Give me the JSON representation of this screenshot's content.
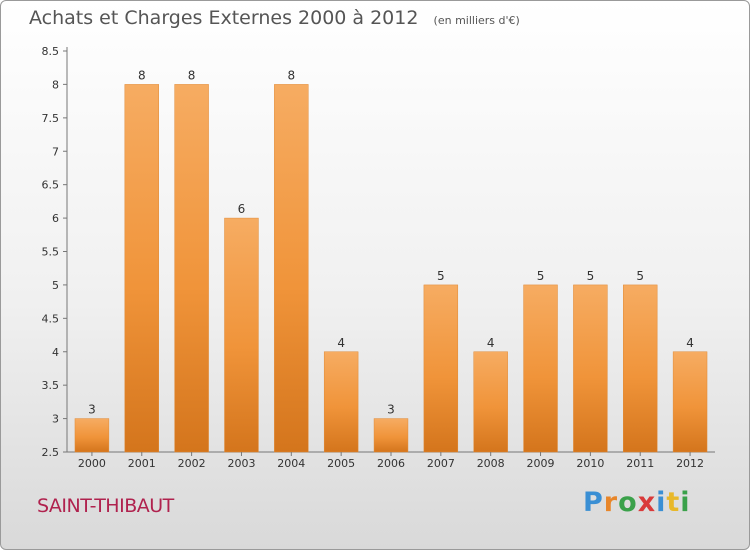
{
  "title": "Achats et Charges Externes 2000 à 2012",
  "unit": "(en milliers d'€)",
  "commune": "SAINT-THIBAUT",
  "logo": {
    "letters": [
      "P",
      "r",
      "o",
      "x",
      "i",
      "t",
      "i"
    ],
    "colors": [
      "#3a8fd4",
      "#e8862a",
      "#3aa14a",
      "#d93a3a",
      "#3a8fd4",
      "#e8b82a",
      "#3aa14a"
    ]
  },
  "colors": {
    "bar": "#f0943a",
    "bar_light": "#f6ac62",
    "bar_dark": "#d4751c",
    "title": "#555555",
    "commune": "#b0224e"
  },
  "chart_data": {
    "type": "bar",
    "categories": [
      "2000",
      "2001",
      "2002",
      "2003",
      "2004",
      "2005",
      "2006",
      "2007",
      "2008",
      "2009",
      "2010",
      "2011",
      "2012"
    ],
    "values": [
      3,
      8,
      8,
      6,
      8,
      4,
      3,
      5,
      4,
      5,
      5,
      5,
      4
    ],
    "ylim": [
      2.5,
      8.5
    ],
    "yticks": [
      "8.5",
      "8",
      "7.5",
      "7",
      "6.5",
      "6",
      "5.5",
      "5",
      "4.5",
      "4",
      "3.5",
      "3",
      "2.5"
    ],
    "grid": false,
    "title": "Achats et Charges Externes 2000 à 2012",
    "xlabel": "",
    "ylabel": ""
  }
}
